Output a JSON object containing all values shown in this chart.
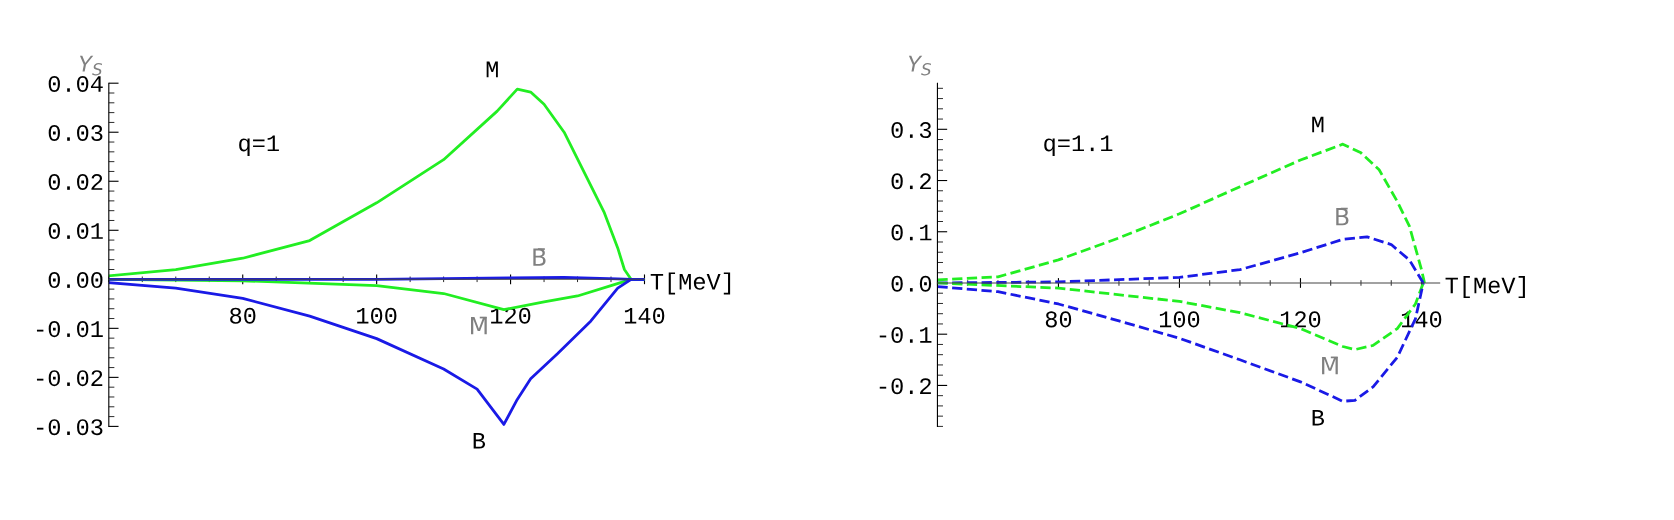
{
  "chart_data": [
    {
      "type": "line",
      "xlabel": "T[MeV]",
      "ylabel": "Y$_{S}$",
      "line_style": "solid",
      "marker": "none",
      "grid": false,
      "legend": false,
      "xlim": [
        60,
        140
      ],
      "ylim": [
        -0.03,
        0.04
      ],
      "xticks": [
        80,
        100,
        120,
        140
      ],
      "yticks": [
        {
          "value": -0.03,
          "label": "-0.03"
        },
        {
          "value": -0.02,
          "label": "-0.02"
        },
        {
          "value": -0.01,
          "label": "-0.01"
        },
        {
          "value": 0,
          "label": "0.00"
        },
        {
          "value": 0.01,
          "label": "0.01"
        },
        {
          "value": 0.02,
          "label": "0.02"
        },
        {
          "value": 0.03,
          "label": "0.03"
        },
        {
          "value": 0.04,
          "label": "0.04"
        }
      ],
      "series": [
        {
          "name": "M",
          "color": "#22ee22",
          "x": [
            60,
            70,
            80,
            90,
            100,
            110,
            118,
            121,
            123,
            125,
            128,
            131,
            134,
            136,
            137,
            138,
            140
          ],
          "values": [
            0.0007,
            0.002,
            0.0043,
            0.0079,
            0.0156,
            0.0244,
            0.0343,
            0.0388,
            0.0382,
            0.0357,
            0.03,
            0.0218,
            0.0136,
            0.0064,
            0.002,
            0,
            0
          ]
        },
        {
          "name": "M̄",
          "color": "#22ee22",
          "x": [
            60,
            80,
            100,
            110,
            119,
            125,
            130,
            135,
            138,
            140
          ],
          "values": [
            0,
            -0.0003,
            -0.0013,
            -0.0029,
            -0.0062,
            -0.0046,
            -0.0034,
            -0.0013,
            0,
            0
          ]
        },
        {
          "name": "B",
          "color": "#1a1ae6",
          "x": [
            60,
            70,
            80,
            90,
            100,
            110,
            115,
            119,
            121,
            123,
            127,
            132,
            136,
            138,
            140
          ],
          "values": [
            -0.0007,
            -0.0018,
            -0.0039,
            -0.0075,
            -0.0121,
            -0.0183,
            -0.0224,
            -0.0296,
            -0.0245,
            -0.0203,
            -0.0152,
            -0.0085,
            -0.0018,
            0,
            0
          ]
        },
        {
          "name": "B̄",
          "color": "#1a1ae6",
          "x": [
            60,
            100,
            120,
            128,
            136,
            138,
            140
          ],
          "values": [
            0,
            0,
            0.0003,
            0.0004,
            0.0001,
            0,
            0
          ]
        }
      ],
      "annotations": [
        "q=1"
      ]
    },
    {
      "type": "line",
      "xlabel": "T[MeV]",
      "ylabel": "Y$_{S}$",
      "line_style": "dashed",
      "marker": "none",
      "grid": false,
      "legend": false,
      "xlim": [
        60,
        143
      ],
      "ylim": [
        -0.28,
        0.39
      ],
      "xticks": [
        80,
        100,
        120,
        140
      ],
      "yticks": [
        {
          "value": -0.2,
          "label": "-0.2"
        },
        {
          "value": -0.1,
          "label": "-0.1"
        },
        {
          "value": 0,
          "label": "0.0"
        },
        0.1,
        0.2,
        0.3
      ],
      "series": [
        {
          "name": "M",
          "color": "#22ee22",
          "x": [
            60,
            70,
            80,
            90,
            100,
            110,
            120,
            127,
            130,
            133,
            136,
            138,
            140,
            140.5
          ],
          "values": [
            0.006,
            0.012,
            0.045,
            0.088,
            0.135,
            0.188,
            0.24,
            0.271,
            0.254,
            0.221,
            0.159,
            0.111,
            0.026,
            0
          ]
        },
        {
          "name": "B̄",
          "color": "#1a1ae6",
          "x": [
            60,
            80,
            100,
            110,
            120,
            127,
            131,
            135,
            138,
            140.3
          ],
          "values": [
            0,
            0.002,
            0.011,
            0.026,
            0.059,
            0.085,
            0.09,
            0.075,
            0.045,
            0
          ]
        },
        {
          "name": "M̄",
          "color": "#22ee22",
          "x": [
            60,
            80,
            100,
            110,
            120,
            127,
            129,
            132,
            136,
            139,
            140.3
          ],
          "values": [
            0,
            -0.01,
            -0.036,
            -0.058,
            -0.089,
            -0.124,
            -0.13,
            -0.122,
            -0.089,
            -0.041,
            0
          ]
        },
        {
          "name": "B",
          "color": "#1a1ae6",
          "x": [
            60,
            70,
            80,
            90,
            100,
            110,
            120,
            127,
            129,
            132,
            136,
            139,
            140.3
          ],
          "values": [
            -0.007,
            -0.017,
            -0.041,
            -0.074,
            -0.108,
            -0.15,
            -0.193,
            -0.231,
            -0.229,
            -0.203,
            -0.145,
            -0.07,
            0
          ]
        }
      ],
      "annotations": [
        "q=1.1"
      ]
    }
  ]
}
